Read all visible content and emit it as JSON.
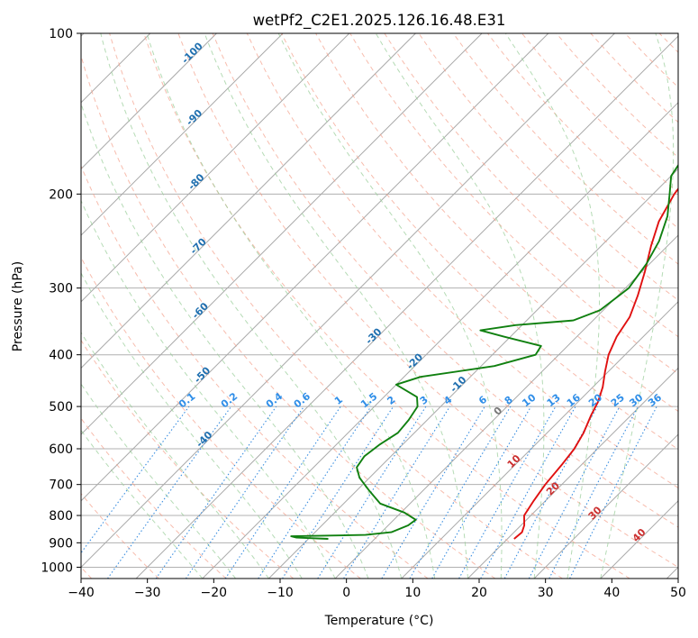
{
  "chart_data": {
    "type": "line",
    "subtype": "skew-t log-p diagram",
    "title": "wetPf2_C2E1.2025.126.16.48.E31",
    "xlabel": "Temperature (°C)",
    "ylabel": "Pressure (hPa)",
    "xlim": [
      -40,
      50
    ],
    "ylim": [
      1050,
      100
    ],
    "yscale": "log",
    "grid": true,
    "x_ticks": [
      "−40",
      "−30",
      "−20",
      "−10",
      "0",
      "10",
      "20",
      "30",
      "40",
      "50"
    ],
    "y_ticks": [
      "100",
      "200",
      "300",
      "400",
      "500",
      "600",
      "700",
      "800",
      "900",
      "1000"
    ],
    "series": [
      {
        "color": "#e01010",
        "points": [
          [
            21.0,
            885
          ],
          [
            21.2,
            860
          ],
          [
            20.5,
            835
          ],
          [
            19.0,
            800
          ],
          [
            18.2,
            750
          ],
          [
            17.5,
            700
          ],
          [
            17.0,
            640
          ],
          [
            16.5,
            600
          ],
          [
            15.5,
            560
          ],
          [
            14.0,
            520
          ],
          [
            13.0,
            490
          ],
          [
            11.5,
            460
          ],
          [
            9.5,
            430
          ],
          [
            7.5,
            400
          ],
          [
            6.0,
            370
          ],
          [
            5.0,
            340
          ],
          [
            3.0,
            310
          ],
          [
            0.5,
            280
          ],
          [
            -2.5,
            250
          ],
          [
            -5.0,
            225
          ],
          [
            -6.8,
            200
          ],
          [
            -7.5,
            185
          ],
          [
            -7.0,
            175
          ],
          [
            -5.0,
            165
          ],
          [
            -1.0,
            158
          ],
          [
            3.0,
            152
          ],
          [
            6.0,
            145
          ],
          [
            7.5,
            130
          ],
          [
            7.8,
            118
          ],
          [
            8.8,
            108
          ],
          [
            9.3,
            100
          ]
        ]
      },
      {
        "color": "#108010",
        "points": [
          [
            -7.0,
            885
          ],
          [
            -12.0,
            880
          ],
          [
            -13.0,
            875
          ],
          [
            -2.0,
            870
          ],
          [
            1.5,
            860
          ],
          [
            3.0,
            835
          ],
          [
            3.3,
            815
          ],
          [
            0.5,
            790
          ],
          [
            -4.5,
            760
          ],
          [
            -8.0,
            720
          ],
          [
            -11.5,
            680
          ],
          [
            -13.5,
            650
          ],
          [
            -14.0,
            620
          ],
          [
            -13.5,
            590
          ],
          [
            -12.5,
            560
          ],
          [
            -12.8,
            530
          ],
          [
            -13.5,
            500
          ],
          [
            -15.0,
            480
          ],
          [
            -20.0,
            455
          ],
          [
            -17.5,
            440
          ],
          [
            -8.0,
            420
          ],
          [
            -3.5,
            400
          ],
          [
            -4.0,
            385
          ],
          [
            -11.0,
            370
          ],
          [
            -15.5,
            360
          ],
          [
            -11.0,
            352
          ],
          [
            -3.0,
            345
          ],
          [
            -0.5,
            330
          ],
          [
            0.5,
            300
          ],
          [
            -0.5,
            270
          ],
          [
            -2.0,
            245
          ],
          [
            -4.5,
            220
          ],
          [
            -7.5,
            200
          ],
          [
            -10.0,
            185
          ],
          [
            -11.0,
            170
          ],
          [
            -13.5,
            158
          ],
          [
            -16.0,
            150
          ],
          [
            -17.0,
            142
          ],
          [
            -16.5,
            130
          ],
          [
            -14.5,
            120
          ],
          [
            -12.5,
            110
          ],
          [
            -10.0,
            100
          ]
        ]
      }
    ],
    "isotherm_labels": [
      "-100",
      "-90",
      "-80",
      "-70",
      "-60",
      "-50",
      "-40",
      "-30",
      "-20",
      "-10",
      "0",
      "10",
      "20",
      "30",
      "40"
    ],
    "mixing_ratio_labels": [
      "0.1",
      "0.2",
      "0.4",
      "0.6",
      "1",
      "1.5",
      "2",
      "3",
      "4",
      "6",
      "8",
      "10",
      "13",
      "16",
      "20",
      "25",
      "30",
      "36"
    ]
  }
}
